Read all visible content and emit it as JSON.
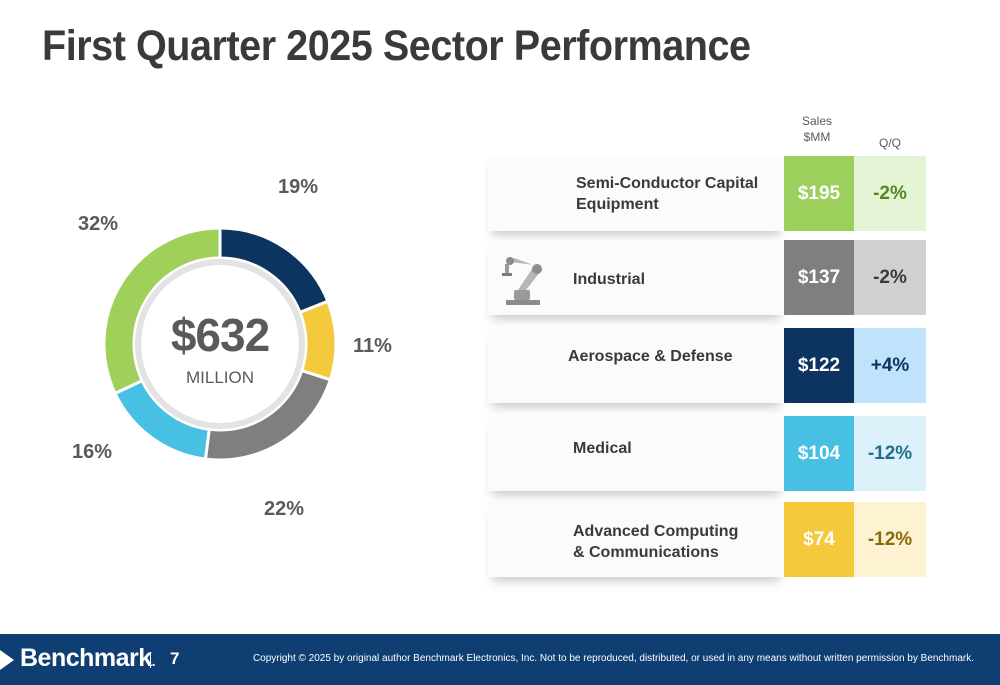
{
  "title": "First Quarter 2025 Sector Performance",
  "chart_data": {
    "type": "pie",
    "center_value": "$632",
    "center_unit": "MILLION",
    "slices": [
      {
        "label": "19%",
        "value": 19,
        "color": "#0d3360"
      },
      {
        "label": "11%",
        "value": 11,
        "color": "#f4c93c"
      },
      {
        "label": "22%",
        "value": 22,
        "color": "#7f7f7f"
      },
      {
        "label": "16%",
        "value": 16,
        "color": "#48c0e3"
      },
      {
        "label": "32%",
        "value": 32,
        "color": "#9fd15a"
      }
    ]
  },
  "table": {
    "header_sales": "Sales\n$MM",
    "header_qq": "Q/Q",
    "rows": [
      {
        "name": "Semi-Conductor Capital\nEquipment",
        "sales": "$195",
        "qq": "-2%",
        "sales_color": "#9ccf5b",
        "qq_bg": "#e6f4d6",
        "qq_color": "#4e8a1f"
      },
      {
        "name": "Industrial",
        "sales": "$137",
        "qq": "-2%",
        "sales_color": "#7f7f7f",
        "qq_bg": "#d0d0d0",
        "qq_color": "#3a3a3a",
        "icon": "robot-arm-icon"
      },
      {
        "name": "Aerospace & Defense",
        "sales": "$122",
        "qq": "+4%",
        "sales_color": "#0d3360",
        "qq_bg": "#bfe3fa",
        "qq_color": "#0d3360"
      },
      {
        "name": "Medical",
        "sales": "$104",
        "qq": "-12%",
        "sales_color": "#48c0e3",
        "qq_bg": "#dcf1f9",
        "qq_color": "#1f6f8c"
      },
      {
        "name": "Advanced Computing\n& Communications",
        "sales": "$74",
        "qq": "-12%",
        "sales_color": "#f4c93c",
        "qq_bg": "#fdf3d3",
        "qq_color": "#8a6a0c"
      }
    ]
  },
  "footer": {
    "logo": "Benchmark",
    "logo_tm": ".",
    "page_number": "7",
    "copyright": "Copyright © 2025 by original author Benchmark Electronics, Inc. Not to be reproduced, distributed, or used in any means without written permission by Benchmark."
  }
}
